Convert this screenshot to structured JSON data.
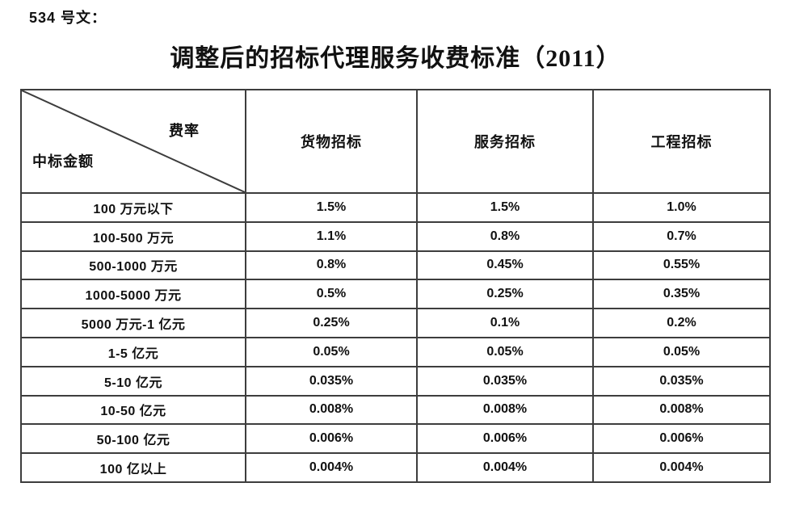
{
  "doc_label": "534 号文：",
  "title": "调整后的招标代理服务收费标准（2011）",
  "table": {
    "corner_top_right": "费率",
    "corner_bottom_left": "中标金额",
    "columns": [
      "货物招标",
      "服务招标",
      "工程招标"
    ],
    "rows": [
      {
        "label": "100 万元以下",
        "values": [
          "1.5%",
          "1.5%",
          "1.0%"
        ]
      },
      {
        "label": "100-500 万元",
        "values": [
          "1.1%",
          "0.8%",
          "0.7%"
        ]
      },
      {
        "label": "500-1000 万元",
        "values": [
          "0.8%",
          "0.45%",
          "0.55%"
        ]
      },
      {
        "label": "1000-5000 万元",
        "values": [
          "0.5%",
          "0.25%",
          "0.35%"
        ]
      },
      {
        "label": "5000 万元-1 亿元",
        "values": [
          "0.25%",
          "0.1%",
          "0.2%"
        ]
      },
      {
        "label": "1-5 亿元",
        "values": [
          "0.05%",
          "0.05%",
          "0.05%"
        ]
      },
      {
        "label": "5-10 亿元",
        "values": [
          "0.035%",
          "0.035%",
          "0.035%"
        ]
      },
      {
        "label": "10-50 亿元",
        "values": [
          "0.008%",
          "0.008%",
          "0.008%"
        ]
      },
      {
        "label": "50-100 亿元",
        "values": [
          "0.006%",
          "0.006%",
          "0.006%"
        ]
      },
      {
        "label": "100 亿以上",
        "values": [
          "0.004%",
          "0.004%",
          "0.004%"
        ]
      }
    ]
  },
  "colors": {
    "border": "#3d3d3d",
    "text": "#111111",
    "background": "#ffffff"
  }
}
